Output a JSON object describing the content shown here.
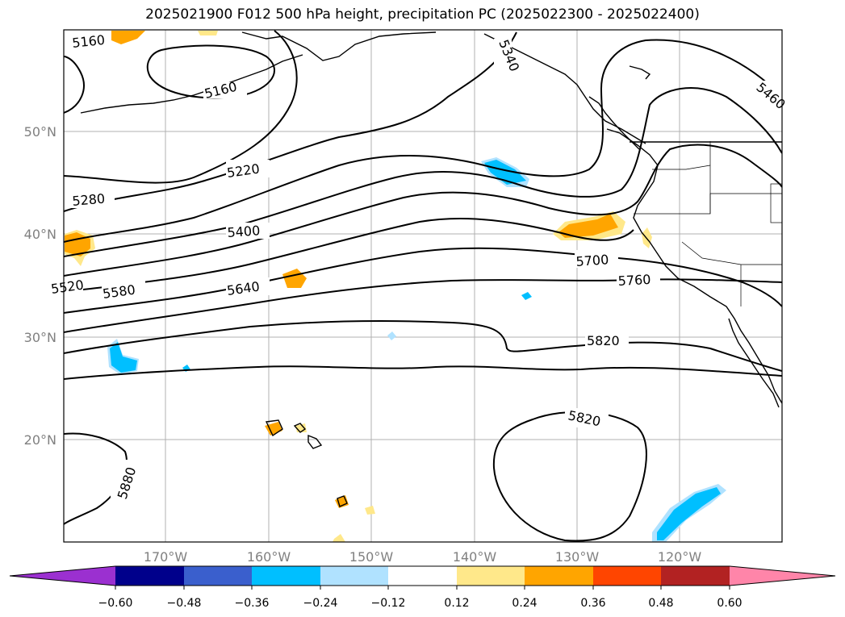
{
  "title": "2025021900 F012 500 hPa height, precipitation PC (2025022300 - 2025022400)",
  "lat_labels": [
    "50°N",
    "40°N",
    "30°N",
    "20°N"
  ],
  "lon_labels": [
    "170°W",
    "160°W",
    "150°W",
    "140°W",
    "130°W",
    "120°W"
  ],
  "contour_labels": [
    "5160",
    "5160",
    "5220",
    "5280",
    "5340",
    "5400",
    "5460",
    "5520",
    "5580",
    "5640",
    "5700",
    "5760",
    "5820",
    "5820",
    "5880"
  ],
  "colorbar": {
    "ticks": [
      "−0.60",
      "−0.48",
      "−0.36",
      "−0.24",
      "−0.12",
      "0.12",
      "0.24",
      "0.36",
      "0.48",
      "0.60"
    ],
    "colors": {
      "under": "#9b30d0",
      "c1": "#00008b",
      "c2": "#3a5fcd",
      "c3": "#00bfff",
      "c4": "#b0e2ff",
      "c5": "#ffffff",
      "c6": "#ffe88a",
      "c7": "#ffa500",
      "c8": "#ff4500",
      "c9": "#b22222",
      "over": "#ff85a9"
    }
  }
}
